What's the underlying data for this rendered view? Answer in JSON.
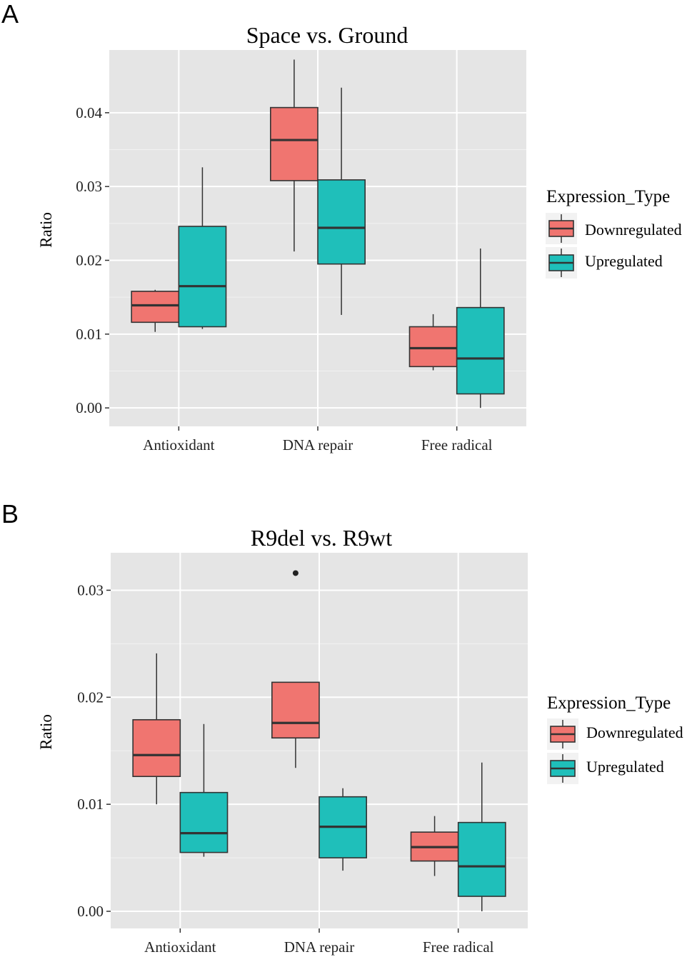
{
  "legend_colors": {
    "Downregulated": "#F07570",
    "Upregulated": "#1FBFBA"
  },
  "panel_bg": "#E5E5E5",
  "chart_data": [
    {
      "panel": "A",
      "type": "boxplot",
      "title": "Space vs. Ground",
      "xlabel": "",
      "ylabel": "Ratio",
      "ylim": [
        -0.0025,
        0.0485
      ],
      "yticks": [
        0,
        0.01,
        0.02,
        0.03,
        0.04
      ],
      "ytick_labels": [
        "0.00",
        "0.01",
        "0.02",
        "0.03",
        "0.04"
      ],
      "categories": [
        "Antioxidant",
        "DNA repair",
        "Free radical"
      ],
      "legend": {
        "title": "Expression_Type",
        "entries": [
          "Downregulated",
          "Upregulated"
        ]
      },
      "series": [
        {
          "name": "Downregulated",
          "boxes": [
            {
              "category": "Antioxidant",
              "whisker_low": 0.0103,
              "q1": 0.0116,
              "median": 0.0139,
              "q3": 0.0158,
              "whisker_high": 0.016,
              "outliers": []
            },
            {
              "category": "DNA repair",
              "whisker_low": 0.0212,
              "q1": 0.0308,
              "median": 0.0363,
              "q3": 0.0407,
              "whisker_high": 0.0472,
              "outliers": []
            },
            {
              "category": "Free radical",
              "whisker_low": 0.0051,
              "q1": 0.0056,
              "median": 0.0081,
              "q3": 0.011,
              "whisker_high": 0.0127,
              "outliers": []
            }
          ]
        },
        {
          "name": "Upregulated",
          "boxes": [
            {
              "category": "Antioxidant",
              "whisker_low": 0.0107,
              "q1": 0.011,
              "median": 0.0165,
              "q3": 0.0246,
              "whisker_high": 0.0326,
              "outliers": []
            },
            {
              "category": "DNA repair",
              "whisker_low": 0.0126,
              "q1": 0.0195,
              "median": 0.0244,
              "q3": 0.0309,
              "whisker_high": 0.0434,
              "outliers": []
            },
            {
              "category": "Free radical",
              "whisker_low": 0.0,
              "q1": 0.0019,
              "median": 0.0067,
              "q3": 0.0136,
              "whisker_high": 0.0216,
              "outliers": []
            }
          ]
        }
      ]
    },
    {
      "panel": "B",
      "type": "boxplot",
      "title": "R9del vs. R9wt",
      "xlabel": "",
      "ylabel": "Ratio",
      "ylim": [
        -0.0016,
        0.0335
      ],
      "yticks": [
        0,
        0.01,
        0.02,
        0.03
      ],
      "ytick_labels": [
        "0.00",
        "0.01",
        "0.02",
        "0.03"
      ],
      "categories": [
        "Antioxidant",
        "DNA repair",
        "Free radical"
      ],
      "legend": {
        "title": "Expression_Type",
        "entries": [
          "Downregulated",
          "Upregulated"
        ]
      },
      "series": [
        {
          "name": "Downregulated",
          "boxes": [
            {
              "category": "Antioxidant",
              "whisker_low": 0.01,
              "q1": 0.0126,
              "median": 0.0146,
              "q3": 0.0179,
              "whisker_high": 0.0241,
              "outliers": []
            },
            {
              "category": "DNA repair",
              "whisker_low": 0.0134,
              "q1": 0.0162,
              "median": 0.0176,
              "q3": 0.0214,
              "whisker_high": 0.0214,
              "outliers": [
                0.0316
              ]
            },
            {
              "category": "Free radical",
              "whisker_low": 0.0033,
              "q1": 0.0047,
              "median": 0.006,
              "q3": 0.0074,
              "whisker_high": 0.0089,
              "outliers": []
            }
          ]
        },
        {
          "name": "Upregulated",
          "boxes": [
            {
              "category": "Antioxidant",
              "whisker_low": 0.0051,
              "q1": 0.0055,
              "median": 0.0073,
              "q3": 0.0111,
              "whisker_high": 0.0175,
              "outliers": []
            },
            {
              "category": "DNA repair",
              "whisker_low": 0.0038,
              "q1": 0.005,
              "median": 0.0079,
              "q3": 0.0107,
              "whisker_high": 0.0115,
              "outliers": []
            },
            {
              "category": "Free radical",
              "whisker_low": 0.0,
              "q1": 0.0014,
              "median": 0.0042,
              "q3": 0.0083,
              "whisker_high": 0.0139,
              "outliers": []
            }
          ]
        }
      ]
    }
  ]
}
